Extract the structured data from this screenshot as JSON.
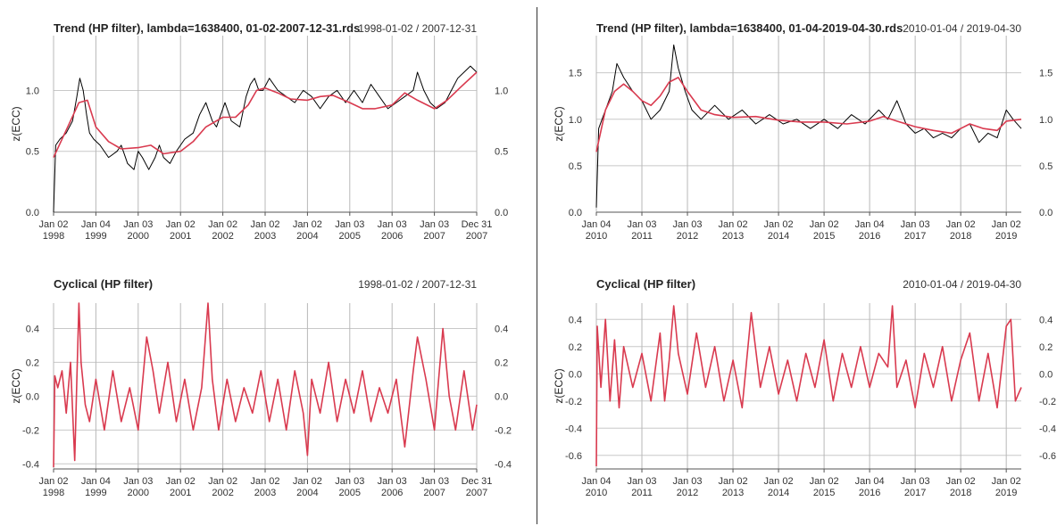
{
  "chart_data": [
    {
      "type": "line",
      "title": "Trend (HP filter), lambda=1638400, 01-02-2007-12-31.rds",
      "date_range": "1998-01-02 / 2007-12-31",
      "ylabel": "z(ECC)",
      "ylim": [
        0,
        1.45
      ],
      "yticks": [
        "0.0",
        "0.5",
        "1.0"
      ],
      "xlim": [
        1998.0,
        2008.0
      ],
      "xticks": [
        {
          "line1": "Jan 02",
          "line2": "1998",
          "x": 1998.0
        },
        {
          "line1": "Jan 04",
          "line2": "1999",
          "x": 1999.0
        },
        {
          "line1": "Jan 03",
          "line2": "2000",
          "x": 2000.0
        },
        {
          "line1": "Jan 02",
          "line2": "2001",
          "x": 2001.0
        },
        {
          "line1": "Jan 02",
          "line2": "2002",
          "x": 2002.0
        },
        {
          "line1": "Jan 02",
          "line2": "2003",
          "x": 2003.0
        },
        {
          "line1": "Jan 02",
          "line2": "2004",
          "x": 2004.0
        },
        {
          "line1": "Jan 03",
          "line2": "2005",
          "x": 2005.0
        },
        {
          "line1": "Jan 03",
          "line2": "2006",
          "x": 2006.0
        },
        {
          "line1": "Jan 03",
          "line2": "2007",
          "x": 2007.0
        },
        {
          "line1": "Dec 31",
          "line2": "2007",
          "x": 2008.0
        }
      ],
      "series": [
        {
          "role": "data",
          "color": "#000000",
          "x": [
            1998.0,
            1998.05,
            1998.15,
            1998.3,
            1998.45,
            1998.55,
            1998.62,
            1998.7,
            1998.78,
            1998.85,
            1998.95,
            1999.1,
            1999.3,
            1999.5,
            1999.6,
            1999.75,
            1999.9,
            2000.0,
            2000.1,
            2000.25,
            2000.4,
            2000.5,
            2000.6,
            2000.75,
            2000.9,
            2001.0,
            2001.1,
            2001.3,
            2001.45,
            2001.6,
            2001.75,
            2001.85,
            2001.95,
            2002.05,
            2002.2,
            2002.4,
            2002.55,
            2002.65,
            2002.75,
            2002.85,
            2002.95,
            2003.1,
            2003.3,
            2003.5,
            2003.7,
            2003.9,
            2004.1,
            2004.3,
            2004.5,
            2004.7,
            2004.9,
            2005.1,
            2005.3,
            2005.5,
            2005.7,
            2005.9,
            2006.1,
            2006.3,
            2006.5,
            2006.6,
            2006.75,
            2006.9,
            2007.05,
            2007.25,
            2007.4,
            2007.55,
            2007.7,
            2007.85,
            2008.0
          ],
          "y": [
            0.0,
            0.55,
            0.6,
            0.65,
            0.75,
            0.95,
            1.1,
            1.0,
            0.8,
            0.65,
            0.6,
            0.55,
            0.45,
            0.5,
            0.55,
            0.4,
            0.35,
            0.5,
            0.45,
            0.35,
            0.45,
            0.55,
            0.45,
            0.4,
            0.5,
            0.55,
            0.6,
            0.65,
            0.8,
            0.9,
            0.75,
            0.7,
            0.8,
            0.9,
            0.75,
            0.7,
            0.95,
            1.05,
            1.1,
            1.0,
            1.0,
            1.1,
            1.0,
            0.95,
            0.9,
            1.0,
            0.95,
            0.85,
            0.95,
            1.0,
            0.9,
            1.0,
            0.9,
            1.05,
            0.95,
            0.85,
            0.9,
            0.95,
            1.0,
            1.15,
            1.0,
            0.9,
            0.85,
            0.9,
            1.0,
            1.1,
            1.15,
            1.2,
            1.15
          ]
        },
        {
          "role": "trend",
          "color": "#d93a4f",
          "x": [
            1998.0,
            1998.2,
            1998.4,
            1998.6,
            1998.8,
            1999.0,
            1999.3,
            1999.6,
            2000.0,
            2000.3,
            2000.6,
            2001.0,
            2001.3,
            2001.6,
            2002.0,
            2002.3,
            2002.6,
            2002.8,
            2003.0,
            2003.3,
            2003.6,
            2004.0,
            2004.3,
            2004.6,
            2005.0,
            2005.3,
            2005.6,
            2006.0,
            2006.3,
            2006.6,
            2007.0,
            2007.3,
            2007.6,
            2008.0
          ],
          "y": [
            0.45,
            0.6,
            0.75,
            0.9,
            0.92,
            0.7,
            0.58,
            0.52,
            0.53,
            0.55,
            0.48,
            0.5,
            0.58,
            0.7,
            0.78,
            0.78,
            0.88,
            1.0,
            1.02,
            0.98,
            0.93,
            0.92,
            0.95,
            0.96,
            0.9,
            0.85,
            0.85,
            0.88,
            0.98,
            0.92,
            0.85,
            0.92,
            1.02,
            1.15
          ]
        }
      ]
    },
    {
      "type": "line",
      "title": "Trend (HP filter), lambda=1638400, 01-04-2019-04-30.rds",
      "date_range": "2010-01-04 / 2019-04-30",
      "ylabel": "z(ECC)",
      "ylim": [
        0,
        1.9
      ],
      "yticks": [
        "0.0",
        "0.5",
        "1.0",
        "1.5"
      ],
      "xlim": [
        2010.0,
        2019.33
      ],
      "xticks": [
        {
          "line1": "Jan 04",
          "line2": "2010",
          "x": 2010.0
        },
        {
          "line1": "Jan 03",
          "line2": "2011",
          "x": 2011.0
        },
        {
          "line1": "Jan 03",
          "line2": "2012",
          "x": 2012.0
        },
        {
          "line1": "Jan 02",
          "line2": "2013",
          "x": 2013.0
        },
        {
          "line1": "Jan 02",
          "line2": "2014",
          "x": 2014.0
        },
        {
          "line1": "Jan 02",
          "line2": "2015",
          "x": 2015.0
        },
        {
          "line1": "Jan 04",
          "line2": "2016",
          "x": 2016.0
        },
        {
          "line1": "Jan 03",
          "line2": "2017",
          "x": 2017.0
        },
        {
          "line1": "Jan 02",
          "line2": "2018",
          "x": 2018.0
        },
        {
          "line1": "Jan 02",
          "line2": "2019",
          "x": 2019.0
        }
      ],
      "series": [
        {
          "role": "data",
          "color": "#000000",
          "x": [
            2010.0,
            2010.05,
            2010.2,
            2010.35,
            2010.45,
            2010.6,
            2010.8,
            2011.0,
            2011.2,
            2011.4,
            2011.6,
            2011.7,
            2011.8,
            2011.95,
            2012.1,
            2012.3,
            2012.6,
            2012.9,
            2013.2,
            2013.5,
            2013.8,
            2014.1,
            2014.4,
            2014.7,
            2015.0,
            2015.3,
            2015.6,
            2015.9,
            2016.2,
            2016.4,
            2016.6,
            2016.8,
            2017.0,
            2017.2,
            2017.4,
            2017.6,
            2017.8,
            2018.0,
            2018.2,
            2018.4,
            2018.6,
            2018.8,
            2019.0,
            2019.15,
            2019.33
          ],
          "y": [
            0.05,
            0.9,
            1.1,
            1.3,
            1.6,
            1.45,
            1.3,
            1.2,
            1.0,
            1.1,
            1.3,
            1.8,
            1.55,
            1.3,
            1.1,
            1.0,
            1.15,
            1.0,
            1.1,
            0.95,
            1.05,
            0.95,
            1.0,
            0.9,
            1.0,
            0.9,
            1.05,
            0.95,
            1.1,
            1.0,
            1.2,
            0.95,
            0.85,
            0.9,
            0.8,
            0.85,
            0.8,
            0.9,
            0.95,
            0.75,
            0.85,
            0.8,
            1.1,
            1.0,
            0.9
          ]
        },
        {
          "role": "trend",
          "color": "#d93a4f",
          "x": [
            2010.0,
            2010.2,
            2010.4,
            2010.6,
            2010.8,
            2011.0,
            2011.2,
            2011.4,
            2011.6,
            2011.8,
            2012.0,
            2012.3,
            2012.6,
            2013.0,
            2013.5,
            2014.0,
            2014.5,
            2015.0,
            2015.5,
            2016.0,
            2016.3,
            2016.6,
            2017.0,
            2017.4,
            2017.8,
            2018.0,
            2018.2,
            2018.5,
            2018.8,
            2019.0,
            2019.33
          ],
          "y": [
            0.65,
            1.1,
            1.3,
            1.38,
            1.3,
            1.2,
            1.15,
            1.25,
            1.4,
            1.45,
            1.3,
            1.1,
            1.05,
            1.02,
            1.03,
            0.99,
            0.97,
            0.97,
            0.95,
            0.98,
            1.03,
            0.98,
            0.92,
            0.88,
            0.85,
            0.9,
            0.95,
            0.9,
            0.88,
            0.98,
            1.0
          ]
        }
      ]
    },
    {
      "type": "line",
      "title": "Cyclical (HP filter)",
      "date_range": "1998-01-02 / 2007-12-31",
      "ylabel": "z(ECC)",
      "ylim": [
        -0.43,
        0.55
      ],
      "yticks": [
        "-0.4",
        "-0.2",
        "0.0",
        "0.2",
        "0.4"
      ],
      "xlim": [
        1998.0,
        2008.0
      ],
      "xticks": [
        {
          "line1": "Jan 02",
          "line2": "1998",
          "x": 1998.0
        },
        {
          "line1": "Jan 04",
          "line2": "1999",
          "x": 1999.0
        },
        {
          "line1": "Jan 03",
          "line2": "2000",
          "x": 2000.0
        },
        {
          "line1": "Jan 02",
          "line2": "2001",
          "x": 2001.0
        },
        {
          "line1": "Jan 02",
          "line2": "2002",
          "x": 2002.0
        },
        {
          "line1": "Jan 02",
          "line2": "2003",
          "x": 2003.0
        },
        {
          "line1": "Jan 02",
          "line2": "2004",
          "x": 2004.0
        },
        {
          "line1": "Jan 03",
          "line2": "2005",
          "x": 2005.0
        },
        {
          "line1": "Jan 03",
          "line2": "2006",
          "x": 2006.0
        },
        {
          "line1": "Jan 03",
          "line2": "2007",
          "x": 2007.0
        },
        {
          "line1": "Dec 31",
          "line2": "2007",
          "x": 2008.0
        }
      ],
      "series": [
        {
          "role": "cycle",
          "color": "#d93a4f",
          "x": [
            1998.0,
            1998.03,
            1998.1,
            1998.2,
            1998.3,
            1998.4,
            1998.5,
            1998.55,
            1998.6,
            1998.65,
            1998.75,
            1998.85,
            1999.0,
            1999.2,
            1999.4,
            1999.6,
            1999.8,
            2000.0,
            2000.2,
            2000.35,
            2000.5,
            2000.7,
            2000.9,
            2001.1,
            2001.3,
            2001.5,
            2001.65,
            2001.75,
            2001.9,
            2002.1,
            2002.3,
            2002.5,
            2002.7,
            2002.9,
            2003.1,
            2003.3,
            2003.5,
            2003.7,
            2003.9,
            2004.0,
            2004.1,
            2004.3,
            2004.5,
            2004.7,
            2004.9,
            2005.1,
            2005.3,
            2005.5,
            2005.7,
            2005.9,
            2006.1,
            2006.3,
            2006.5,
            2006.6,
            2006.8,
            2007.0,
            2007.2,
            2007.35,
            2007.5,
            2007.7,
            2007.9,
            2008.0
          ],
          "y": [
            -0.42,
            0.12,
            0.05,
            0.15,
            -0.1,
            0.2,
            -0.38,
            0.1,
            0.55,
            0.2,
            -0.05,
            -0.15,
            0.1,
            -0.2,
            0.15,
            -0.15,
            0.05,
            -0.2,
            0.35,
            0.15,
            -0.1,
            0.2,
            -0.15,
            0.1,
            -0.2,
            0.05,
            0.55,
            0.1,
            -0.2,
            0.1,
            -0.15,
            0.05,
            -0.1,
            0.15,
            -0.15,
            0.1,
            -0.2,
            0.15,
            -0.1,
            -0.35,
            0.1,
            -0.1,
            0.2,
            -0.15,
            0.1,
            -0.1,
            0.15,
            -0.15,
            0.05,
            -0.1,
            0.1,
            -0.3,
            0.15,
            0.35,
            0.1,
            -0.2,
            0.4,
            0.0,
            -0.2,
            0.15,
            -0.2,
            -0.05
          ]
        }
      ]
    },
    {
      "type": "line",
      "title": "Cyclical (HP filter)",
      "date_range": "2010-01-04 / 2019-04-30",
      "ylabel": "z(ECC)",
      "ylim": [
        -0.7,
        0.52
      ],
      "yticks": [
        "-0.6",
        "-0.4",
        "-0.2",
        "0.0",
        "0.2",
        "0.4"
      ],
      "xlim": [
        2010.0,
        2019.33
      ],
      "xticks": [
        {
          "line1": "Jan 04",
          "line2": "2010",
          "x": 2010.0
        },
        {
          "line1": "Jan 03",
          "line2": "2011",
          "x": 2011.0
        },
        {
          "line1": "Jan 03",
          "line2": "2012",
          "x": 2012.0
        },
        {
          "line1": "Jan 02",
          "line2": "2013",
          "x": 2013.0
        },
        {
          "line1": "Jan 02",
          "line2": "2014",
          "x": 2014.0
        },
        {
          "line1": "Jan 02",
          "line2": "2015",
          "x": 2015.0
        },
        {
          "line1": "Jan 04",
          "line2": "2016",
          "x": 2016.0
        },
        {
          "line1": "Jan 03",
          "line2": "2017",
          "x": 2017.0
        },
        {
          "line1": "Jan 02",
          "line2": "2018",
          "x": 2018.0
        },
        {
          "line1": "Jan 02",
          "line2": "2019",
          "x": 2019.0
        }
      ],
      "series": [
        {
          "role": "cycle",
          "color": "#d93a4f",
          "x": [
            2010.0,
            2010.02,
            2010.1,
            2010.2,
            2010.3,
            2010.4,
            2010.5,
            2010.6,
            2010.8,
            2011.0,
            2011.2,
            2011.4,
            2011.5,
            2011.6,
            2011.7,
            2011.8,
            2012.0,
            2012.2,
            2012.4,
            2012.6,
            2012.8,
            2013.0,
            2013.2,
            2013.4,
            2013.6,
            2013.8,
            2014.0,
            2014.2,
            2014.4,
            2014.6,
            2014.8,
            2015.0,
            2015.2,
            2015.4,
            2015.6,
            2015.8,
            2016.0,
            2016.2,
            2016.4,
            2016.5,
            2016.6,
            2016.8,
            2017.0,
            2017.2,
            2017.4,
            2017.6,
            2017.8,
            2018.0,
            2018.2,
            2018.4,
            2018.6,
            2018.8,
            2019.0,
            2019.1,
            2019.2,
            2019.33
          ],
          "y": [
            -0.68,
            0.35,
            -0.1,
            0.4,
            -0.2,
            0.25,
            -0.25,
            0.2,
            -0.1,
            0.15,
            -0.2,
            0.3,
            -0.2,
            0.1,
            0.5,
            0.15,
            -0.15,
            0.3,
            -0.1,
            0.2,
            -0.2,
            0.1,
            -0.25,
            0.45,
            -0.1,
            0.2,
            -0.15,
            0.1,
            -0.2,
            0.15,
            -0.1,
            0.25,
            -0.2,
            0.15,
            -0.1,
            0.2,
            -0.1,
            0.15,
            0.05,
            0.5,
            -0.1,
            0.1,
            -0.25,
            0.15,
            -0.1,
            0.2,
            -0.2,
            0.1,
            0.3,
            -0.2,
            0.15,
            -0.25,
            0.35,
            0.4,
            -0.2,
            -0.1
          ]
        }
      ]
    }
  ]
}
